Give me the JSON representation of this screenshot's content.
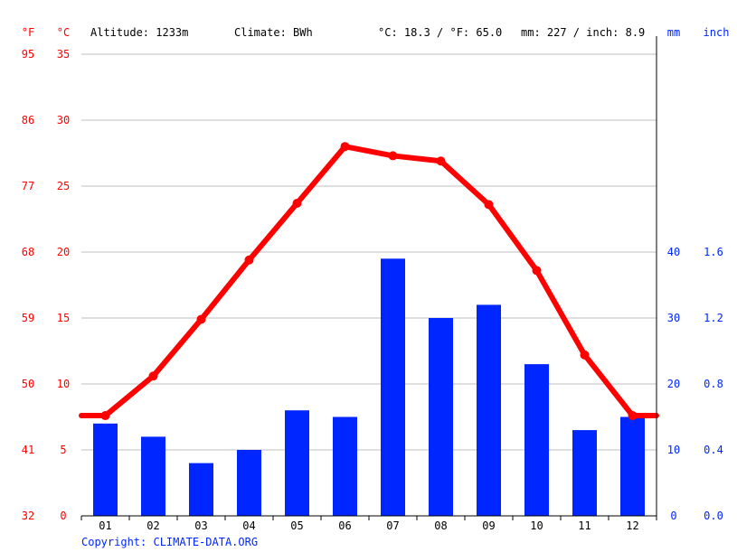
{
  "header": {
    "f_unit": "°F",
    "c_unit": "°C",
    "altitude": "Altitude: 1233m",
    "climate": "Climate: BWh",
    "temp_avg": "°C: 18.3 / °F: 65.0",
    "precip_total": "mm: 227 / inch: 8.9",
    "mm_unit": "mm",
    "inch_unit": "inch"
  },
  "copyright": "Copyright: CLIMATE-DATA.ORG",
  "colors": {
    "temperature": "#ff0000",
    "precipitation": "#0026ff",
    "grid": "#bfbfbf",
    "axis": "#000000",
    "label_text": "#000000"
  },
  "chart_data": {
    "type": "bar",
    "categories": [
      "01",
      "02",
      "03",
      "04",
      "05",
      "06",
      "07",
      "08",
      "09",
      "10",
      "11",
      "12"
    ],
    "series": [
      {
        "type": "bar",
        "axis": "right",
        "values": [
          14,
          12,
          8,
          10,
          16,
          15,
          39,
          30,
          32,
          23,
          13,
          15
        ]
      },
      {
        "type": "line",
        "axis": "left",
        "values": [
          7.6,
          10.6,
          14.9,
          19.4,
          23.7,
          28.0,
          27.3,
          26.9,
          23.6,
          18.6,
          12.2,
          7.6
        ]
      }
    ],
    "left_axis": {
      "unit": "°C",
      "ylim": [
        0,
        35
      ],
      "ticks": [
        "0",
        "5",
        "10",
        "15",
        "20",
        "25",
        "30",
        "35"
      ]
    },
    "fahrenheit_axis": {
      "unit": "°F",
      "ticks": [
        "32",
        "41",
        "50",
        "59",
        "68",
        "77",
        "86",
        "95"
      ]
    },
    "right_axis": {
      "unit": "mm",
      "ylim": [
        0,
        70
      ],
      "ticks": [
        "0",
        "10",
        "20",
        "30",
        "40"
      ]
    },
    "inch_axis": {
      "unit": "inch",
      "ticks": [
        "0.0",
        "0.4",
        "0.8",
        "1.2",
        "1.6"
      ]
    },
    "grid": true
  }
}
